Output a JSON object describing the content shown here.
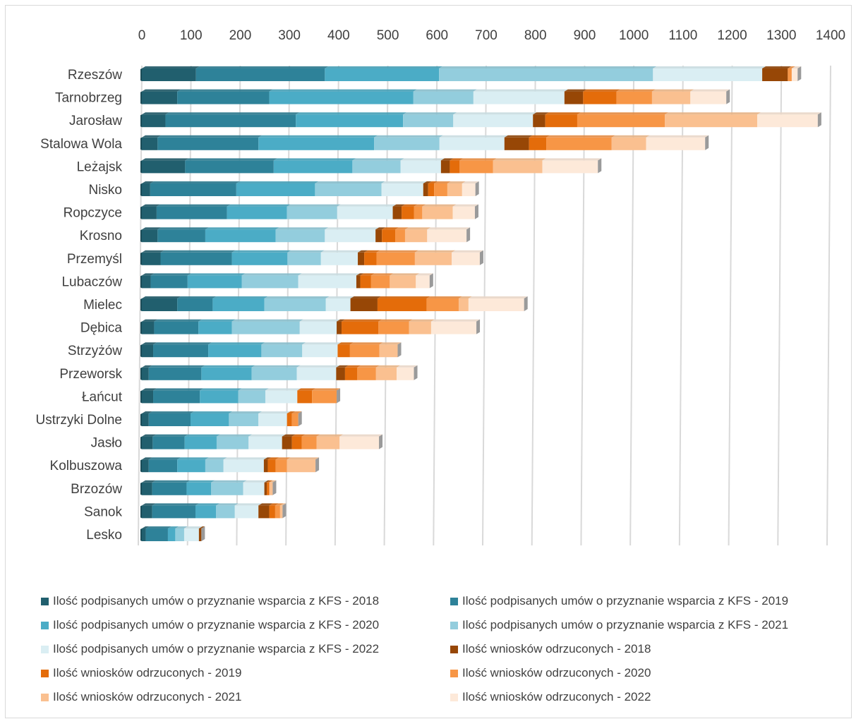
{
  "chart_data": {
    "type": "bar",
    "orientation": "horizontal",
    "stacked": true,
    "style": "3d",
    "title": "",
    "xlabel": "",
    "ylabel": "",
    "xlim": [
      0,
      1400
    ],
    "x_ticks": [
      "0",
      "100",
      "200",
      "300",
      "400",
      "500",
      "600",
      "700",
      "800",
      "900",
      "1000",
      "1100",
      "1200",
      "1300",
      "1400"
    ],
    "grid": true,
    "legend_position": "bottom",
    "categories": [
      "Rzeszów",
      "Tarnobrzeg",
      "Jarosław",
      "Stalowa Wola",
      "Leżajsk",
      "Nisko",
      "Ropczyce",
      "Krosno",
      "Przemyśl",
      "Lubaczów",
      "Mielec",
      "Dębica",
      "Strzyżów",
      "Przeworsk",
      "Łańcut",
      "Ustrzyki Dolne",
      "Jasło",
      "Kolbuszowa",
      "Brzozów",
      "Sanok",
      "Lesko"
    ],
    "series": [
      {
        "name": "Ilość podpisanych umów o przyznanie wsparcia z KFS - 2018",
        "color": "#215f6e",
        "values": [
          110,
          72,
          48,
          32,
          88,
          17,
          30,
          32,
          38,
          18,
          72,
          25,
          23,
          14,
          23,
          14,
          22,
          14,
          21,
          21,
          8
        ]
      },
      {
        "name": "Ilość podpisanych umów o przyznanie wsparcia z KFS - 2019",
        "color": "#2e8299",
        "values": [
          262,
          187,
          265,
          205,
          180,
          175,
          143,
          97,
          145,
          75,
          72,
          90,
          112,
          107,
          95,
          85,
          65,
          58,
          70,
          88,
          45
        ]
      },
      {
        "name": "Ilość podpisanych umów o przyznanie wsparcia z KFS - 2020",
        "color": "#4bacc6",
        "values": [
          232,
          293,
          218,
          235,
          160,
          160,
          122,
          143,
          113,
          110,
          105,
          68,
          108,
          102,
          78,
          78,
          65,
          57,
          50,
          42,
          15
        ]
      },
      {
        "name": "Ilość podpisanych umów o przyznanie wsparcia z KFS - 2021",
        "color": "#93cddd",
        "values": [
          435,
          122,
          102,
          133,
          98,
          135,
          102,
          100,
          68,
          115,
          125,
          138,
          83,
          92,
          55,
          60,
          65,
          37,
          65,
          38,
          18
        ]
      },
      {
        "name": "Ilość podpisanych umów o przyznanie wsparcia z KFS - 2022",
        "color": "#daeef3",
        "values": [
          222,
          185,
          162,
          132,
          82,
          85,
          113,
          103,
          75,
          118,
          50,
          75,
          72,
          80,
          65,
          58,
          68,
          82,
          43,
          48,
          30
        ]
      },
      {
        "name": "Ilość wniosków odrzuconych - 2018",
        "color": "#974706",
        "values": [
          52,
          38,
          25,
          50,
          18,
          10,
          18,
          13,
          13,
          8,
          55,
          10,
          0,
          18,
          0,
          0,
          20,
          8,
          5,
          22,
          5
        ]
      },
      {
        "name": "Ilość wniosków odrzuconych - 2019",
        "color": "#e46c0a",
        "values": [
          0,
          68,
          65,
          35,
          20,
          12,
          25,
          27,
          25,
          22,
          100,
          75,
          25,
          25,
          30,
          10,
          20,
          16,
          5,
          12,
          0
        ]
      },
      {
        "name": "Ilość wniosków odrzuconych - 2020",
        "color": "#f79646",
        "values": [
          8,
          72,
          178,
          133,
          68,
          27,
          17,
          20,
          78,
          38,
          65,
          62,
          60,
          38,
          50,
          13,
          30,
          23,
          0,
          10,
          0
        ]
      },
      {
        "name": "Ilość wniosków odrzuconych - 2021",
        "color": "#fac090",
        "values": [
          0,
          78,
          188,
          70,
          100,
          30,
          62,
          45,
          75,
          53,
          20,
          45,
          37,
          42,
          0,
          0,
          47,
          58,
          7,
          5,
          0
        ]
      },
      {
        "name": "Ilość wniosków odrzuconych - 2022",
        "color": "#fde9d9",
        "values": [
          12,
          73,
          123,
          120,
          113,
          27,
          45,
          80,
          57,
          28,
          113,
          92,
          0,
          35,
          0,
          0,
          80,
          0,
          0,
          0,
          0
        ]
      }
    ]
  }
}
